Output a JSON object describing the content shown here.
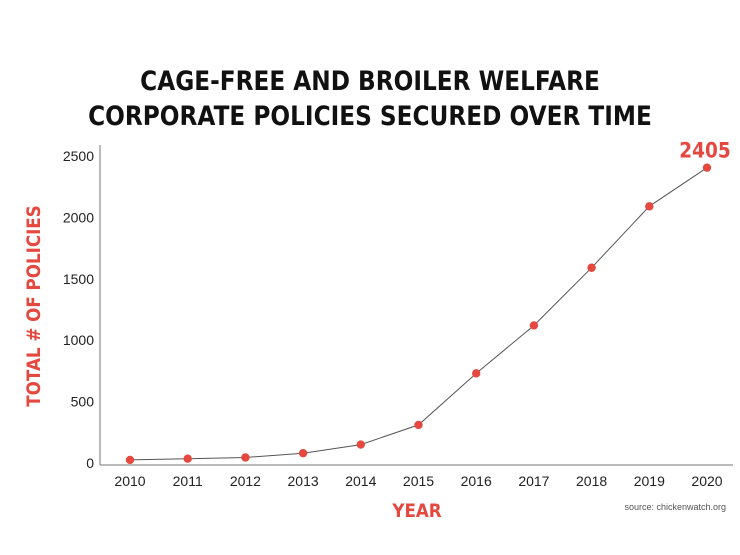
{
  "chart_data": {
    "type": "line",
    "title_line1": "CAGE-FREE AND BROILER WELFARE",
    "title_line2": "CORPORATE POLICIES SECURED OVER TIME",
    "xlabel": "YEAR",
    "ylabel": "TOTAL # OF POLICIES",
    "x": [
      "2010",
      "2011",
      "2012",
      "2013",
      "2014",
      "2015",
      "2016",
      "2017",
      "2018",
      "2019",
      "2020"
    ],
    "values": [
      25,
      35,
      45,
      80,
      150,
      310,
      730,
      1120,
      1590,
      2090,
      2405
    ],
    "yticks": [
      "0",
      "500",
      "1000",
      "1500",
      "2000",
      "2500"
    ],
    "ylim": [
      0,
      2500
    ],
    "annotation": "2405",
    "grid": false,
    "line_color": "#555555",
    "marker_color": "#e4483f",
    "source": "source: chickenwatch.org"
  }
}
